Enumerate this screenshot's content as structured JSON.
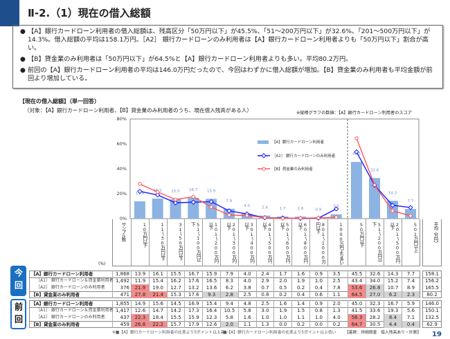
{
  "header": {
    "title": "Ⅱ-2.（1）現在の借入総額",
    "page_number": "19"
  },
  "bullets": [
    "【A】銀行カードローン利用者の借入総額は、残高区分「50万円以下」が45.5%、「51～200万円以下」が32.6%、「201～500万円以下」が14.3%。借入総額の平均は158.1万円。［A2］ 銀行カードローンのみ利用者は【A】銀行カードローン利用者よりも「50万円以下」割合が高い。",
    "【B】貸金業のみ利用者は「50万円以下」が64.5%と【A】銀行カードローン利用者よりも多い。平均80.2万円。",
    "前回の【A】銀行カードローン利用者の平均は146.0万円だったので、今回はわずかに借入総額が増加。【B】貸金業のみ利用者も平均金額が前回より増加している。"
  ],
  "section": {
    "title": "【現在の借入総額】（単一回答）",
    "target": "（対象：【A】銀行カードローン利用者、【B】貸金業のみ利用者のうち、現在借入残高がある人）",
    "bar_note": "※縦棒グラフの数値：【A】銀行カードローン利用者のスコア"
  },
  "chart_data": {
    "type": "bar+line",
    "ylim": [
      0,
      80
    ],
    "yticks": [
      "0%",
      "20%",
      "40%",
      "60%",
      "80%"
    ],
    "grid": false,
    "legend_position": "top-center",
    "categories": [
      "10万円以下",
      "11～30万円以下",
      "31～50万円以下",
      "51～100万円以下",
      "101～200万円以下",
      "201～300万円以下",
      "301～400万円以下",
      "401～500万円以下",
      "501～600万円以下",
      "601～800万円以下",
      "801～1000万円以下",
      "1000万円より多い",
      "50万円以下",
      "51～200万円以下",
      "201～500万円以下",
      "501万円以上"
    ],
    "series": [
      {
        "name": "【A】銀行カードローン利用者",
        "type": "bar",
        "color": "#8db3e2",
        "values": [
          13.9,
          16.1,
          15.5,
          16.7,
          15.9,
          7.9,
          4.0,
          2.4,
          1.7,
          1.6,
          0.9,
          3.5,
          45.5,
          32.6,
          14.3,
          7.7
        ]
      },
      {
        "name": "［A2］ 銀行カードローンのみ利用者",
        "type": "line",
        "color": "#1a1aff",
        "values": [
          21.9,
          19.0,
          12.7,
          13.2,
          13.6,
          6.2,
          3.8,
          0.7,
          0.5,
          0.2,
          0.4,
          7.8,
          53.6,
          26.8,
          10.7,
          8.9
        ]
      },
      {
        "name": "【B】貸金業のみ利用者",
        "type": "line",
        "color": "#ff5555",
        "values": [
          27.8,
          21.4,
          15.3,
          17.6,
          9.3,
          2.8,
          2.5,
          0.8,
          0.2,
          0.4,
          0.6,
          1.1,
          64.5,
          27.0,
          6.2,
          2.3
        ]
      }
    ],
    "bar_labels": [
      "13.9",
      "16.1",
      "15.5",
      "16.7",
      "15.9",
      "7.9",
      "4.0",
      "2.4",
      "1.7",
      "1.6",
      "0.9",
      "3.5",
      "45.5",
      "32.6",
      "14.3",
      "7.7"
    ]
  },
  "table": {
    "unit": "(%)",
    "sample_header": "サンプル数",
    "avg_header": "平均（万円）",
    "groups": [
      {
        "label": "今回",
        "rows": [
          {
            "label": "【A】銀行カードローン利用者",
            "bold": true,
            "n": "1,868",
            "values": [
              "13.9",
              "16.1",
              "15.5",
              "16.7",
              "15.9",
              "7.9",
              "4.0",
              "2.4",
              "1.7",
              "1.6",
              "0.9",
              "3.5",
              "45.5",
              "32.6",
              "14.3",
              "7.7"
            ],
            "avg": "158.1",
            "hl": []
          },
          {
            "label": "［A1］ 銀行カードローン＆貸金業利用者",
            "bold": false,
            "n": "1,492",
            "values": [
              "11.9",
              "15.4",
              "16.2",
              "17.6",
              "16.5",
              "8.3",
              "4.0",
              "2.9",
              "2.0",
              "1.9",
              "1.0",
              "2.5",
              "43.4",
              "34.0",
              "15.2",
              "7.4"
            ],
            "avg": "156.2",
            "hl": []
          },
          {
            "label": "［A2］ 銀行カードローンのみ利用者",
            "bold": false,
            "n": "376",
            "values": [
              "21.9",
              "19.0",
              "12.7",
              "13.2",
              "13.6",
              "6.2",
              "3.8",
              "0.7",
              "0.5",
              "0.2",
              "0.4",
              "7.8",
              "53.6",
              "26.8",
              "10.7",
              "8.9"
            ],
            "avg": "165.5",
            "hl": [
              "r",
              "",
              "",
              "",
              "",
              "",
              "",
              "",
              "",
              "",
              "",
              "",
              "r",
              "g",
              "",
              ""
            ]
          },
          {
            "label": "【B】貸金業のみ利用者",
            "bold": true,
            "n": "471",
            "values": [
              "27.8",
              "21.4",
              "15.3",
              "17.6",
              "9.3",
              "2.8",
              "2.5",
              "0.8",
              "0.2",
              "0.4",
              "0.6",
              "1.1",
              "64.5",
              "27.0",
              "6.2",
              "2.3"
            ],
            "avg": "80.2",
            "hl": [
              "r",
              "r",
              "",
              "",
              "g",
              "g",
              "",
              "",
              "",
              "",
              "",
              "",
              "r",
              "g",
              "g",
              "g"
            ]
          }
        ]
      },
      {
        "label": "前回",
        "rows": [
          {
            "label": "【A】銀行カードローン利用者",
            "bold": true,
            "n": "1,855",
            "values": [
              "14.9",
              "15.6",
              "14.5",
              "16.9",
              "15.4",
              "9.4",
              "4.8",
              "2.5",
              "1.6",
              "1.4",
              "0.9",
              "2.0",
              "45.0",
              "32.3",
              "16.7",
              "5.9"
            ],
            "avg": "146.0",
            "hl": []
          },
          {
            "label": "［A1］ 銀行カードローン＆貸金業利用者",
            "bold": false,
            "n": "1,417",
            "values": [
              "12.6",
              "14.7",
              "14.2",
              "17.3",
              "16.4",
              "10.5",
              "5.8",
              "3.0",
              "1.9",
              "1.5",
              "0.8",
              "1.3",
              "41.5",
              "33.6",
              "19.3",
              "5.6"
            ],
            "avg": "150.1",
            "hl": []
          },
          {
            "label": "［A2］ 銀行カードローンのみ利用者",
            "bold": false,
            "n": "437",
            "values": [
              "22.3",
              "18.4",
              "15.5",
              "15.9",
              "12.3",
              "5.8",
              "1.6",
              "1.0",
              "1.0",
              "1.1",
              "1.0",
              "4.0",
              "56.3",
              "28.2",
              "8.4",
              "7.1"
            ],
            "avg": "132.5",
            "hl": [
              "r",
              "",
              "",
              "",
              "",
              "",
              "",
              "",
              "",
              "",
              "",
              "",
              "r",
              "",
              "g",
              ""
            ]
          },
          {
            "label": "【B】貸金業のみ利用者",
            "bold": true,
            "n": "459",
            "values": [
              "26.8",
              "22.2",
              "15.7",
              "17.9",
              "12.6",
              "2.0",
              "1.1",
              "1.3",
              "0.0",
              "0.2",
              "0.0",
              "0.2",
              "64.7",
              "30.5",
              "4.4",
              "0.4"
            ],
            "avg": "62.9",
            "hl": [
              "r",
              "r",
              "",
              "",
              "",
              "g",
              "",
              "",
              "",
              "",
              "",
              "",
              "r",
              "",
              "g",
              "g"
            ]
          }
        ]
      }
    ],
    "notes": {
      "high": "※■【A】銀行カードローン利用者の比率より5ポイント以上高い",
      "low": "■【A】銀行カードローン利用者の比率より5ポイント以上低い",
      "base": "【基数：詳細調査　借入残高あり・計層】"
    },
    "colors": {
      "highlight_high": "#f28b8b",
      "highlight_low": "#d4d4d4",
      "accent": "#1f4e8c",
      "current_badge": "#1a6fc0"
    }
  }
}
